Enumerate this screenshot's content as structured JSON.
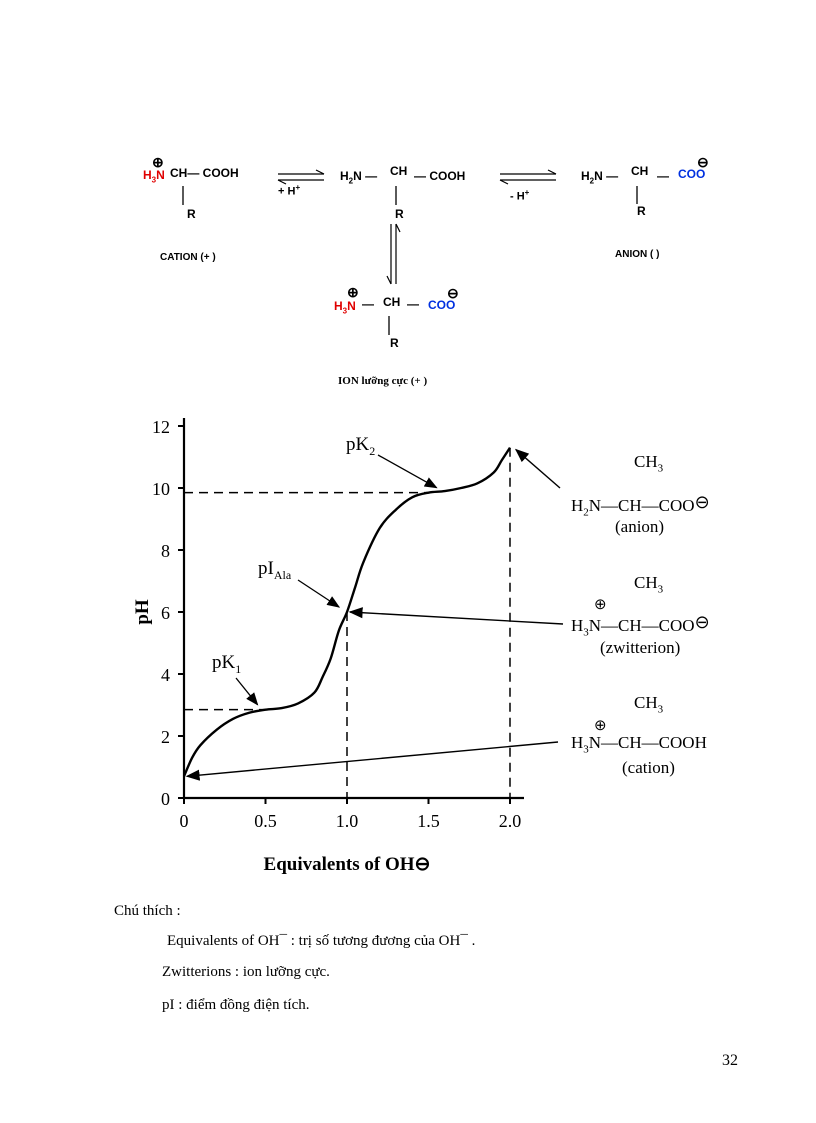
{
  "equilibrium": {
    "cation_label": "CATION (+ )",
    "anion_label": "ANION ( )",
    "zwitterion_label": "ION lưỡng cực (+ )",
    "cation_formula": {
      "charge": "⊕",
      "amine": "H3N",
      "chain": "CH— COOH",
      "sub": "R"
    },
    "neutral_formula": {
      "amine": "H2N —",
      "ch": "CH",
      "acid": "— COOH",
      "sub": "R"
    },
    "anion_formula": {
      "amine": "H2N —",
      "ch": "CH",
      "dash": "—",
      "acid": "COO",
      "charge": "⊖",
      "sub": "R"
    },
    "zwitter_formula": {
      "charge_pos": "⊕",
      "amine": "H3N —",
      "ch": "CH",
      "dash": "—",
      "acid": "COO",
      "charge_neg": "⊖",
      "sub": "R"
    },
    "arrow1_label": "+ H+",
    "arrow2_label": "- H+"
  },
  "chart_data": {
    "type": "line",
    "xlabel": "Equivalents of OH⊖",
    "ylabel": "pH",
    "xlim": [
      0,
      2.0
    ],
    "ylim": [
      0,
      12
    ],
    "x_ticks": [
      "0",
      "0.5",
      "1.0",
      "1.5",
      "2.0"
    ],
    "y_ticks": [
      "0",
      "2",
      "4",
      "6",
      "8",
      "10",
      "12"
    ],
    "series": [
      {
        "x": [
          0,
          0.05,
          0.1,
          0.2,
          0.3,
          0.4,
          0.5,
          0.6,
          0.7,
          0.8,
          0.85,
          0.9,
          0.95,
          1.0,
          1.05,
          1.1,
          1.2,
          1.3,
          1.4,
          1.5,
          1.6,
          1.7,
          1.8,
          1.9,
          1.95,
          2.0
        ],
        "y": [
          0.7,
          1.3,
          1.7,
          2.2,
          2.55,
          2.75,
          2.85,
          2.9,
          3.05,
          3.4,
          3.9,
          4.5,
          5.4,
          6.0,
          6.8,
          7.6,
          8.7,
          9.3,
          9.7,
          9.85,
          9.9,
          10.0,
          10.15,
          10.5,
          10.9,
          11.3
        ]
      }
    ],
    "reference_lines": [
      {
        "type": "horizontal",
        "y": 2.85,
        "x_to": 0.5
      },
      {
        "type": "horizontal",
        "y": 9.85,
        "x_to": 1.5
      },
      {
        "type": "vertical",
        "x": 1.0,
        "y_to": 6.0
      },
      {
        "type": "vertical",
        "x": 2.0,
        "y_to": 11.3
      }
    ],
    "annotations": [
      {
        "label": "pK",
        "sub": "2",
        "x": 1.5,
        "y": 9.85
      },
      {
        "label": "pI",
        "sub": "Ala",
        "x": 1.0,
        "y": 6.0
      },
      {
        "label": "pK",
        "sub": "1",
        "x": 0.5,
        "y": 2.85
      }
    ],
    "structures": [
      {
        "top": "CH3",
        "formula": "H2N—CH—COO⊖",
        "name": "(anion)",
        "points_to": [
          2.0,
          11.3
        ]
      },
      {
        "top": "CH3",
        "formula": "⊕H3N—CH—COO⊖",
        "name": "(zwitterion)",
        "points_to": [
          1.0,
          6.0
        ]
      },
      {
        "top": "CH3",
        "formula": "⊕H3N—CH—COOH",
        "name": "(cation)",
        "points_to": [
          0,
          0.7
        ]
      }
    ]
  },
  "notes": {
    "title": "Chú thích :",
    "line1": "Equivalents of OH¯ : trị số tương đương của OH¯ .",
    "line2": "Zwitterions : ion lưỡng cực.",
    "line3": "pI : điểm đồng điện tích."
  },
  "page_number": "32"
}
